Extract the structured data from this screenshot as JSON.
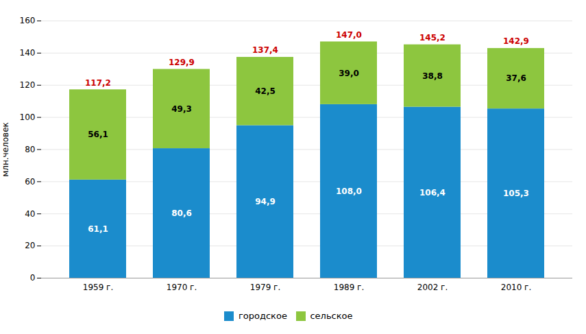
{
  "chart_data": {
    "type": "bar",
    "stacked": true,
    "data_labels": true,
    "ylabel": "млн.человек",
    "categories": [
      "1959 г.",
      "1970 г.",
      "1979 г.",
      "1989 г.",
      "2002 г.",
      "2010 г."
    ],
    "series": [
      {
        "name": "городское",
        "color": "#1B8CCC",
        "values": [
          61.1,
          80.6,
          94.9,
          108.0,
          106.4,
          105.3
        ],
        "value_labels": [
          "61,1",
          "80,6",
          "94,9",
          "108,0",
          "106,4",
          "105,3"
        ]
      },
      {
        "name": "сельское",
        "color": "#8DC63F",
        "values": [
          56.1,
          49.3,
          42.5,
          39.0,
          38.8,
          37.6
        ],
        "value_labels": [
          "56,1",
          "49,3",
          "42,5",
          "39,0",
          "38,8",
          "37,6"
        ]
      }
    ],
    "totals": {
      "values": [
        117.2,
        129.9,
        137.4,
        147.0,
        145.2,
        142.9
      ],
      "value_labels": [
        "117,2",
        "129,9",
        "137,4",
        "147,0",
        "145,2",
        "142,9"
      ],
      "color": "#CC0000"
    },
    "ylim": [
      0,
      160
    ],
    "yticks": [
      0,
      20,
      40,
      60,
      80,
      100,
      120,
      140,
      160
    ],
    "grid": true,
    "legend": "bottom"
  }
}
